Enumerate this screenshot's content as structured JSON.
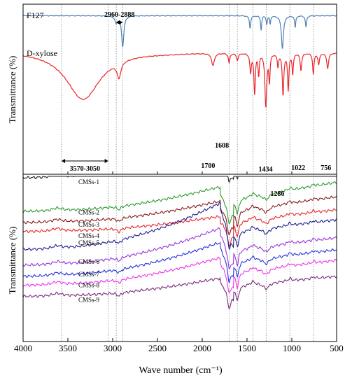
{
  "chart_data": {
    "type": "line",
    "xlabel": "Wave number (cm⁻¹)",
    "ylabel_top": "Transmittance (%)",
    "ylabel_bottom": "Transmittance (%)",
    "xlim": [
      4000,
      500
    ],
    "xticks": [
      4000,
      3500,
      3000,
      2500,
      2000,
      1500,
      1000,
      500
    ],
    "reference_lines": [
      3570,
      3050,
      2960,
      2888,
      1700,
      1608,
      1434,
      1286,
      1022,
      756
    ],
    "annotations": [
      {
        "text": "2960-2888",
        "x": 2924,
        "kind": "range"
      },
      {
        "text": "3570-3050",
        "x": 3310,
        "kind": "range"
      },
      {
        "text": "1608",
        "x": 1608,
        "kind": "arrow"
      },
      {
        "text": "1700",
        "x": 1700,
        "kind": "arrow"
      },
      {
        "text": "1434",
        "x": 1434,
        "kind": "arrow"
      },
      {
        "text": "1286",
        "x": 1286,
        "kind": "arrow"
      },
      {
        "text": "1022",
        "x": 1022,
        "kind": "arrow"
      },
      {
        "text": "756",
        "x": 756,
        "kind": "arrow"
      }
    ],
    "top_panel": {
      "series": [
        {
          "name": "F127",
          "color": "#4f7fb3",
          "base": 0.92,
          "slope": 0.0,
          "broad": [],
          "peaks": [
            [
              2960,
              0.18,
              18
            ],
            [
              2888,
              0.8,
              15
            ],
            [
              1466,
              0.32,
              9
            ],
            [
              1343,
              0.38,
              7
            ],
            [
              1280,
              0.22,
              7
            ],
            [
              1242,
              0.22,
              6
            ],
            [
              1105,
              0.85,
              14
            ],
            [
              962,
              0.32,
              7
            ],
            [
              842,
              0.3,
              8
            ]
          ]
        },
        {
          "name": "D-xylose",
          "color": "#e8262a",
          "base": 0.7,
          "slope": 0.05,
          "broad": [
            [
              3330,
              1.25,
              230
            ],
            [
              2400,
              0.02,
              300
            ]
          ],
          "peaks": [
            [
              2930,
              0.4,
              25
            ],
            [
              1880,
              0.32,
              18
            ],
            [
              1700,
              0.25,
              10
            ],
            [
              1608,
              0.18,
              12
            ],
            [
              1460,
              0.5,
              10
            ],
            [
              1415,
              1.05,
              9
            ],
            [
              1370,
              0.55,
              8
            ],
            [
              1290,
              1.4,
              12
            ],
            [
              1250,
              0.7,
              8
            ],
            [
              1155,
              0.35,
              8
            ],
            [
              1098,
              1.1,
              10
            ],
            [
              1040,
              0.95,
              9
            ],
            [
              990,
              0.55,
              8
            ],
            [
              898,
              0.45,
              10
            ],
            [
              760,
              0.55,
              9
            ],
            [
              700,
              0.3,
              10
            ],
            [
              600,
              0.4,
              12
            ]
          ]
        }
      ]
    },
    "bottom_panel": {
      "series": [
        {
          "name": "CMSs-1",
          "color": "#1a1a1a",
          "offset": 0.0,
          "rise": 0.24,
          "end_shift": 0.06
        },
        {
          "name": "CMSs-2",
          "color": "#2e9a2e",
          "offset": 0.3,
          "rise": 0.16,
          "end_shift": 0.07
        },
        {
          "name": "CMSs-3",
          "color": "#8a1c1c",
          "offset": 0.4,
          "rise": 0.14,
          "end_shift": 0.06
        },
        {
          "name": "CMSs-4",
          "color": "#e8262a",
          "offset": 0.48,
          "rise": 0.1,
          "end_shift": 0.05
        },
        {
          "name": "CMSs-5",
          "color": "#1f1f8f",
          "offset": 0.64,
          "rise": 0.3,
          "end_shift": 0.05
        },
        {
          "name": "CMSs-6",
          "color": "#9933dd",
          "offset": 0.78,
          "rise": 0.24,
          "end_shift": 0.05
        },
        {
          "name": "CMSs-7",
          "color": "#2233dd",
          "offset": 0.88,
          "rise": 0.22,
          "end_shift": 0.05
        },
        {
          "name": "CMSs-8",
          "color": "#ee33ee",
          "offset": 0.96,
          "rise": 0.18,
          "end_shift": 0.05
        },
        {
          "name": "CMSs-9",
          "color": "#7a2a7a",
          "offset": 1.06,
          "rise": 0.12,
          "end_shift": 0.04
        }
      ]
    }
  }
}
